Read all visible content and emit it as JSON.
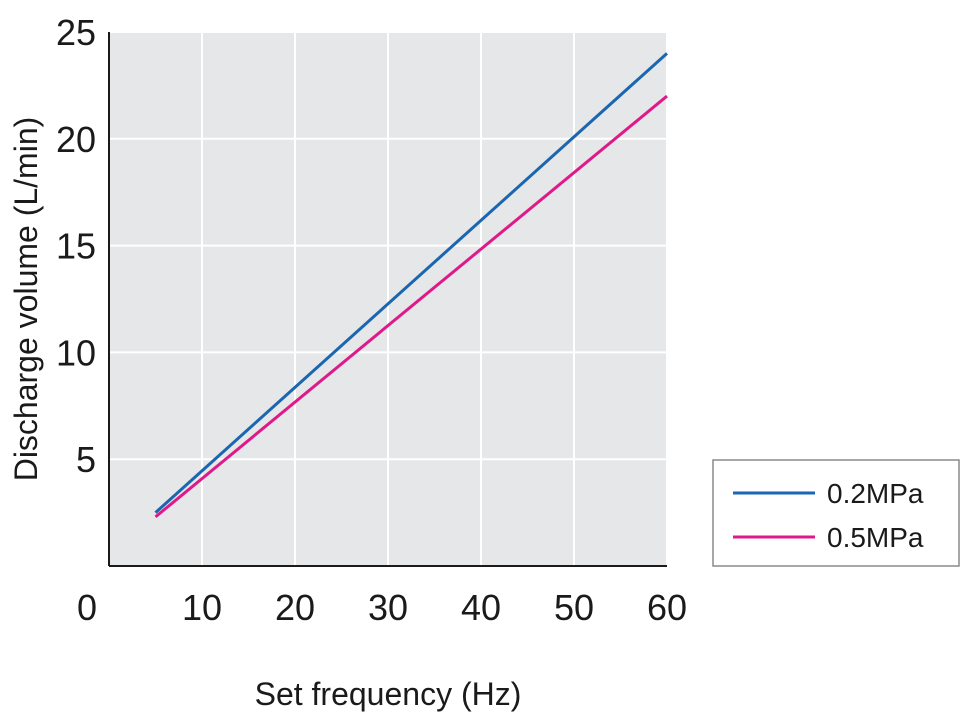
{
  "chart_data": {
    "type": "line",
    "title": "",
    "xlabel": "Set frequency (Hz)",
    "ylabel": "Discharge volume (L/min)",
    "xlim": [
      0,
      60
    ],
    "ylim": [
      0,
      25
    ],
    "x_ticks": [
      0,
      10,
      20,
      30,
      40,
      50,
      60
    ],
    "y_ticks": [
      5,
      10,
      15,
      20,
      25
    ],
    "grid": true,
    "legend_position": "bottom-right, outside plot",
    "background_color": "#e6e7e8",
    "series": [
      {
        "name": "0.2MPa",
        "color": "#1a66b0",
        "x": [
          5,
          60
        ],
        "y": [
          2.5,
          24
        ]
      },
      {
        "name": "0.5MPa",
        "color": "#e0198a",
        "x": [
          5,
          60
        ],
        "y": [
          2.3,
          22
        ]
      }
    ]
  }
}
